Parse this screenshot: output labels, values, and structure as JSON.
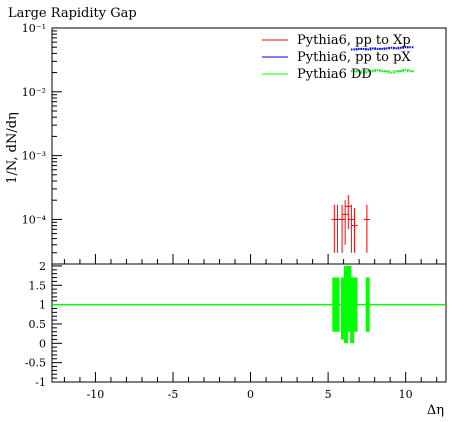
{
  "chart_data": {
    "type": "line",
    "title": "Large Rapidity Gap",
    "xlabel": "Δη",
    "ylabel": "1/N, dN/dη",
    "xlim": [
      -12.8,
      12.6
    ],
    "ylim": [
      2e-05,
      0.1
    ],
    "yscale": "log",
    "ratio_ylim": [
      -1.0,
      2.05
    ],
    "grid": false,
    "legend_position": "top-right",
    "x_ticks": [
      {
        "value": -10,
        "label": "-10"
      },
      {
        "value": -5,
        "label": "-5"
      },
      {
        "value": 0,
        "label": "0"
      },
      {
        "value": 5,
        "label": "5"
      },
      {
        "value": 10,
        "label": "10"
      }
    ],
    "y_ticks": [
      {
        "value": 0.0001,
        "label": "10⁻⁴"
      },
      {
        "value": 0.001,
        "label": "10⁻³"
      },
      {
        "value": 0.01,
        "label": "10⁻²"
      },
      {
        "value": 0.1,
        "label": "10⁻¹"
      }
    ],
    "ratio_ticks": [
      {
        "value": 2,
        "label": "2"
      },
      {
        "value": 1.5,
        "label": "1.5"
      },
      {
        "value": 1,
        "label": "1"
      },
      {
        "value": 0.5,
        "label": "0.5"
      },
      {
        "value": 0,
        "label": "0"
      },
      {
        "value": -0.5,
        "label": "-0.5"
      },
      {
        "value": -1,
        "label": "-1"
      }
    ],
    "series": [
      {
        "name": "Pythia6, pp to Xp",
        "color": "#ff0000",
        "x": [
          5.4,
          5.6,
          5.9,
          6.1,
          6.3,
          6.5,
          6.7,
          7.5
        ],
        "y": [
          0.0001,
          0.0001,
          0.0001,
          0.00012,
          0.00016,
          0.0001,
          8e-05,
          0.0001
        ],
        "y_low": [
          3e-05,
          3e-05,
          3e-05,
          4e-05,
          7e-05,
          3e-05,
          3e-05,
          3e-05
        ],
        "y_high": [
          0.00017,
          0.00017,
          0.00017,
          0.0002,
          0.00024,
          0.00017,
          0.00015,
          0.00017
        ]
      },
      {
        "name": "Pythia6, pp to pX",
        "color": "#0000ff",
        "x": [
          6.7,
          7.0,
          7.3,
          7.6,
          7.9,
          8.2,
          8.5,
          8.8,
          9.1,
          9.4,
          9.7,
          10.0,
          10.3
        ],
        "y": [
          0.046,
          0.047,
          0.047,
          0.046,
          0.048,
          0.047,
          0.047,
          0.048,
          0.049,
          0.048,
          0.049,
          0.05,
          0.05
        ]
      },
      {
        "name": "Pythia6 DD",
        "color": "#00ff00",
        "x": [
          6.7,
          7.0,
          7.3,
          7.6,
          7.9,
          8.2,
          8.5,
          8.8,
          9.1,
          9.4,
          9.7,
          10.0,
          10.3
        ],
        "y": [
          0.021,
          0.021,
          0.02,
          0.021,
          0.021,
          0.022,
          0.021,
          0.021,
          0.02,
          0.021,
          0.021,
          0.022,
          0.021
        ]
      }
    ],
    "ratio_series": {
      "color": "#00ff00",
      "reference": 1,
      "bars": [
        {
          "x": 5.4,
          "low": 0.3,
          "high": 1.7
        },
        {
          "x": 5.6,
          "low": 0.3,
          "high": 1.7
        },
        {
          "x": 5.95,
          "low": 0.1,
          "high": 1.7
        },
        {
          "x": 6.15,
          "low": 0.0,
          "high": 2.0
        },
        {
          "x": 6.35,
          "low": 0.3,
          "high": 2.0
        },
        {
          "x": 6.55,
          "low": 0.0,
          "high": 1.7
        },
        {
          "x": 6.75,
          "low": 0.3,
          "high": 1.7
        },
        {
          "x": 7.55,
          "low": 0.3,
          "high": 1.7
        }
      ]
    }
  }
}
